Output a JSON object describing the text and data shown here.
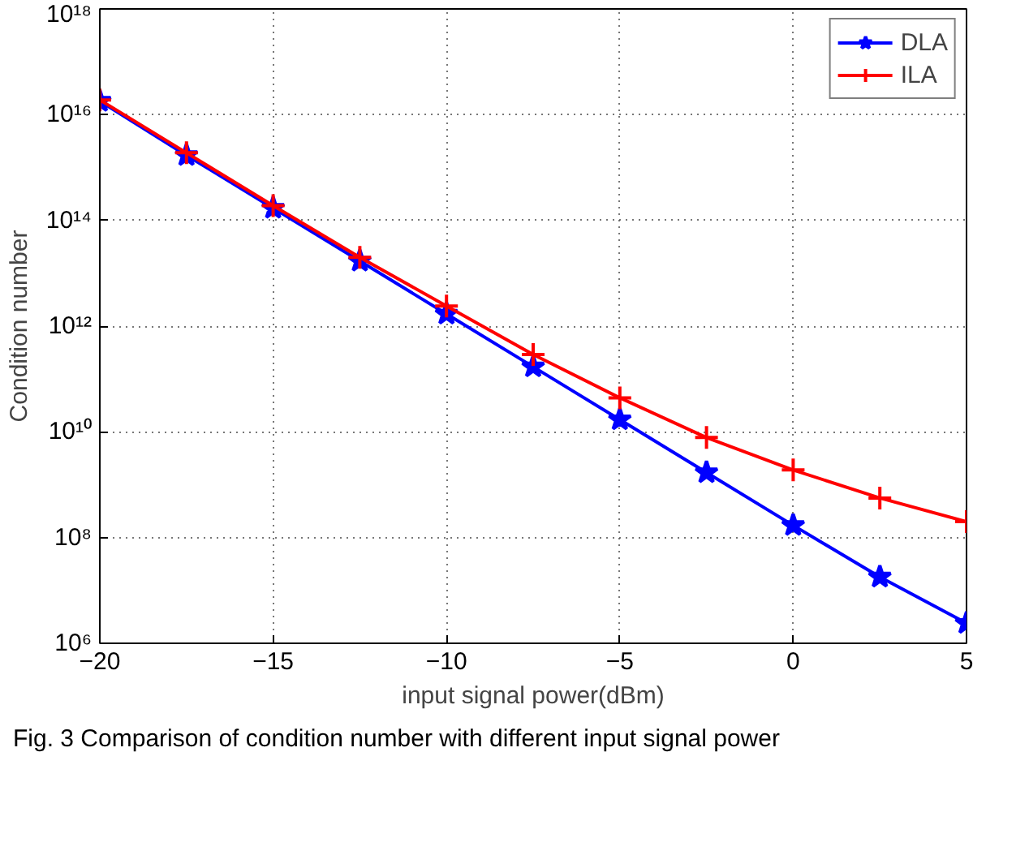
{
  "chart_data": {
    "type": "line",
    "xlabel": "input signal power(dBm)",
    "ylabel": "Condition number",
    "log": "y",
    "grid": true,
    "legend": "top right",
    "line_style": "solid",
    "x": [
      -20,
      -17.5,
      -15,
      -12.5,
      -10,
      -7.5,
      -5,
      -2.5,
      0,
      2.5,
      5
    ],
    "xlim": [
      -20,
      5
    ],
    "xticks": [
      {
        "value": -20,
        "label": "−20"
      },
      {
        "value": -15,
        "label": "−15"
      },
      {
        "value": -10,
        "label": "−10"
      },
      {
        "value": -5,
        "label": "−5"
      },
      0,
      5
    ],
    "ylim": [
      1000000.0,
      1e+18
    ],
    "yticks": [
      {
        "value": 1000000.0,
        "label": "10⁶"
      },
      {
        "value": 100000000.0,
        "label": "10⁸"
      },
      {
        "value": 10000000000.0,
        "label": "10¹⁰"
      },
      {
        "value": 1000000000000.0,
        "label": "10¹²"
      },
      {
        "value": 100000000000000.0,
        "label": "10¹⁴"
      },
      {
        "value": 1e+16,
        "label": "10¹⁶"
      },
      {
        "value": 1e+18,
        "label": "10¹⁸"
      }
    ],
    "series": [
      {
        "name": "DLA",
        "color": "#0000ff",
        "marker": "star",
        "values": [
          1.8e+16,
          1700000000000000.0,
          170000000000000.0,
          17000000000000.0,
          1700000000000.0,
          170000000000.0,
          17000000000.0,
          1700000000.0,
          170000000.0,
          18000000.0,
          2400000.0
        ]
      },
      {
        "name": "ILA",
        "color": "#ff0000",
        "marker": "cross",
        "values": [
          1.9e+16,
          1900000000000000.0,
          190000000000000.0,
          20000000000000.0,
          2400000000000.0,
          290000000000.0,
          44000000000.0,
          7800000000.0,
          1900000000.0,
          560000000.0,
          200000000.0
        ]
      }
    ],
    "annotations": [
      "Fig. 3 Comparison of condition number with different input signal power"
    ]
  }
}
